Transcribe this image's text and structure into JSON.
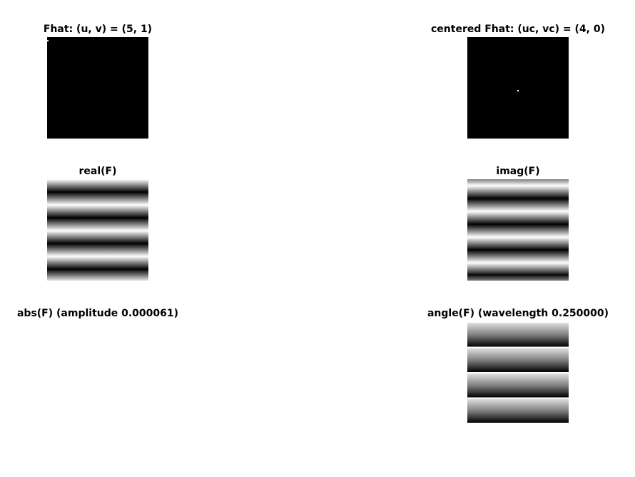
{
  "panels": {
    "fhat": {
      "title": "Fhat: (u, v) = (5, 1)"
    },
    "centered_fhat": {
      "title": "centered Fhat: (uc, vc) = (4, 0)"
    },
    "real": {
      "title": "real(F)"
    },
    "imag": {
      "title": "imag(F)"
    },
    "abs": {
      "title": "abs(F) (amplitude 0.000061)"
    },
    "angle": {
      "title": "angle(F) (wavelength 0.250000)"
    }
  },
  "colors": {
    "background": "#ffffff",
    "image_dark": "#000000",
    "image_light": "#ffffff"
  }
}
